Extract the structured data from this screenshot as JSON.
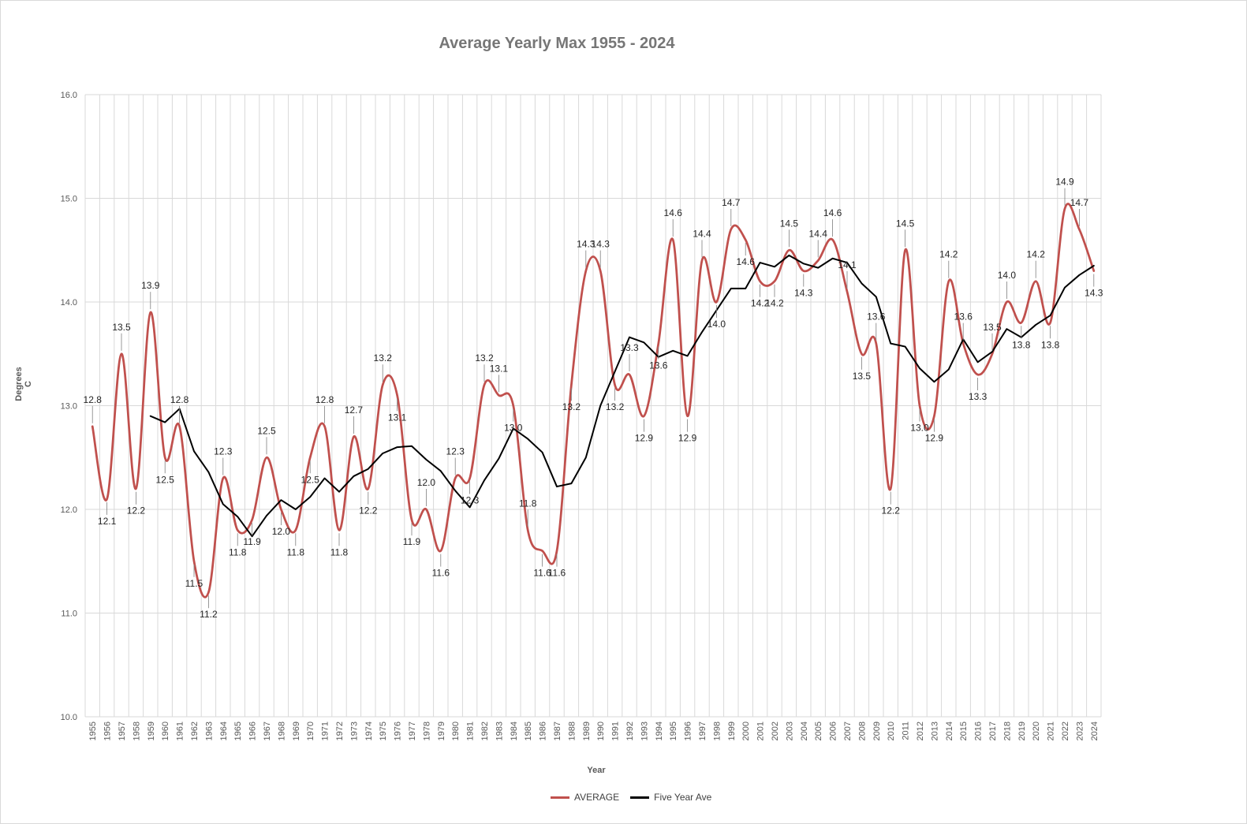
{
  "chart_data": {
    "type": "line",
    "title": "Average Yearly Max 1955 - 2024",
    "xlabel": "Year",
    "ylabel": "Degrees C",
    "ylim": [
      10.0,
      16.0
    ],
    "yticks": [
      "10.0",
      "11.0",
      "12.0",
      "13.0",
      "14.0",
      "15.0",
      "16.0"
    ],
    "grid": true,
    "legend_position": "bottom",
    "categories": [
      "1955",
      "1956",
      "1957",
      "1958",
      "1959",
      "1960",
      "1961",
      "1962",
      "1963",
      "1964",
      "1965",
      "1966",
      "1967",
      "1968",
      "1969",
      "1970",
      "1971",
      "1972",
      "1973",
      "1974",
      "1975",
      "1976",
      "1977",
      "1978",
      "1979",
      "1980",
      "1981",
      "1982",
      "1983",
      "1984",
      "1985",
      "1986",
      "1987",
      "1988",
      "1989",
      "1990",
      "1991",
      "1992",
      "1993",
      "1994",
      "1995",
      "1996",
      "1997",
      "1998",
      "1999",
      "2000",
      "2001",
      "2002",
      "2003",
      "2004",
      "2005",
      "2006",
      "2007",
      "2008",
      "2009",
      "2010",
      "2011",
      "2012",
      "2013",
      "2014",
      "2015",
      "2016",
      "2017",
      "2018",
      "2019",
      "2020",
      "2021",
      "2022",
      "2023",
      "2024"
    ],
    "series": [
      {
        "name": "AVERAGE",
        "color": "#c0504d",
        "values": [
          12.8,
          12.1,
          13.5,
          12.2,
          13.9,
          12.5,
          12.8,
          11.5,
          11.2,
          12.3,
          11.8,
          11.9,
          12.5,
          12.0,
          11.8,
          12.5,
          12.8,
          11.8,
          12.7,
          12.2,
          13.2,
          13.1,
          11.9,
          12.0,
          11.6,
          12.3,
          12.3,
          13.2,
          13.1,
          13.0,
          11.8,
          11.6,
          11.6,
          13.2,
          14.3,
          14.3,
          13.2,
          13.3,
          12.9,
          13.6,
          14.6,
          12.9,
          14.4,
          14.0,
          14.7,
          14.6,
          14.2,
          14.2,
          14.5,
          14.3,
          14.4,
          14.6,
          14.1,
          13.5,
          13.6,
          12.2,
          14.5,
          13.0,
          12.9,
          14.2,
          13.6,
          13.3,
          13.5,
          14.0,
          13.8,
          14.2,
          13.8,
          14.9,
          14.7,
          14.3
        ]
      },
      {
        "name": "Five Year Ave",
        "color": "#000000",
        "values": [
          null,
          null,
          null,
          null,
          12.9,
          12.84,
          12.97,
          12.56,
          12.36,
          12.05,
          11.93,
          11.74,
          11.94,
          12.09,
          12.0,
          12.12,
          12.3,
          12.17,
          12.32,
          12.39,
          12.54,
          12.6,
          12.61,
          12.48,
          12.37,
          12.18,
          12.02,
          12.28,
          12.49,
          12.78,
          12.68,
          12.55,
          12.22,
          12.25,
          12.5,
          13.0,
          13.33,
          13.66,
          13.61,
          13.47,
          13.53,
          13.48,
          13.71,
          13.92,
          14.13,
          14.13,
          14.38,
          14.34,
          14.45,
          14.37,
          14.33,
          14.42,
          14.38,
          14.18,
          14.05,
          13.6,
          13.57,
          13.36,
          13.23,
          13.35,
          13.64,
          13.42,
          13.52,
          13.74,
          13.66,
          13.78,
          13.87,
          14.14,
          14.26,
          14.35
        ]
      }
    ]
  }
}
